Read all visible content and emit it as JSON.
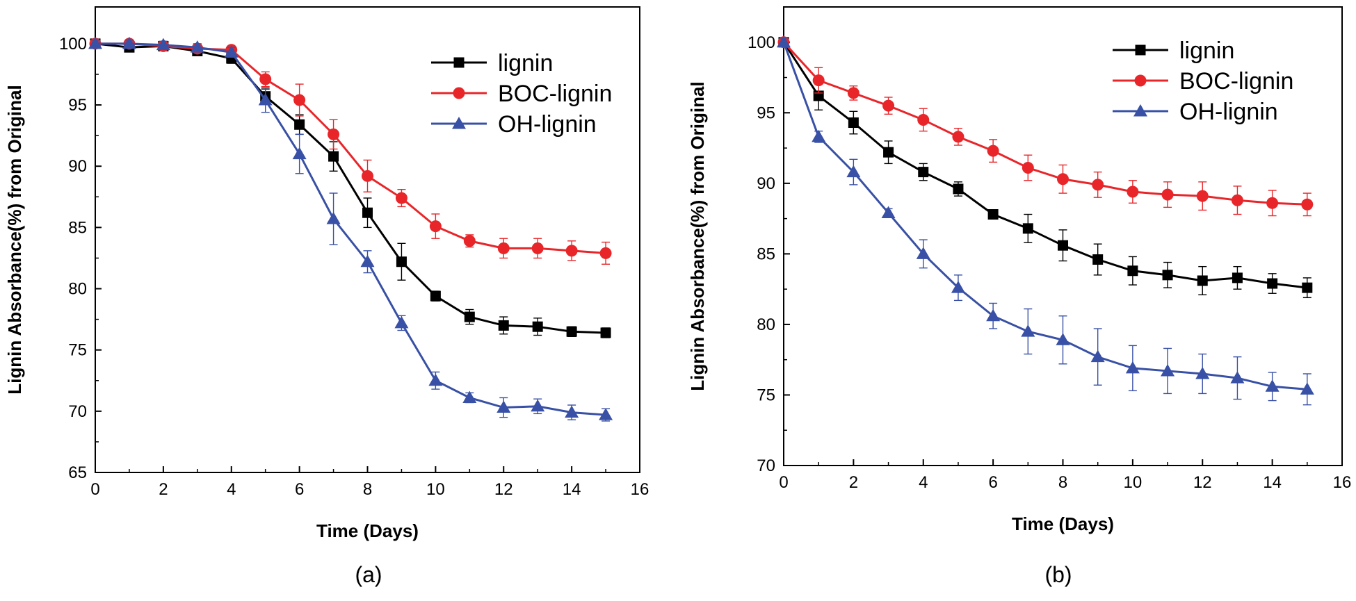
{
  "chart_data": [
    {
      "type": "line",
      "panel_label": "(a)",
      "xlabel": "Time (Days)",
      "ylabel": "Lignin Absorbance(%) from Original",
      "xlim": [
        0,
        16
      ],
      "ylim": [
        65,
        103
      ],
      "xticks": [
        0,
        2,
        4,
        6,
        8,
        10,
        12,
        14,
        16
      ],
      "yticks": [
        65,
        70,
        75,
        80,
        85,
        90,
        95,
        100
      ],
      "legend_position": "top-right",
      "x": [
        0,
        1,
        2,
        3,
        4,
        5,
        6,
        7,
        8,
        9,
        10,
        11,
        12,
        13,
        14,
        15
      ],
      "series": [
        {
          "name": "lignin",
          "color": "#000000",
          "marker": "square",
          "values": [
            100,
            99.7,
            99.8,
            99.4,
            98.8,
            95.7,
            93.4,
            90.8,
            86.2,
            82.2,
            79.4,
            77.7,
            77.0,
            76.9,
            76.5,
            76.4
          ],
          "errors": [
            0.3,
            0.3,
            0.3,
            0.3,
            0.4,
            0.6,
            0.8,
            1.2,
            1.2,
            1.5,
            0.4,
            0.6,
            0.7,
            0.7,
            0.4,
            0.4
          ]
        },
        {
          "name": "BOC-lignin",
          "color": "#e8262a",
          "marker": "circle",
          "values": [
            100,
            100,
            99.8,
            99.6,
            99.5,
            97.1,
            95.4,
            92.6,
            89.2,
            87.4,
            85.1,
            83.9,
            83.3,
            83.3,
            83.1,
            82.9
          ],
          "errors": [
            0.3,
            0.3,
            0.3,
            0.3,
            0.3,
            0.6,
            1.3,
            1.2,
            1.3,
            0.7,
            1.0,
            0.5,
            0.8,
            0.8,
            0.8,
            0.9
          ]
        },
        {
          "name": "OH-lignin",
          "color": "#3850a5",
          "marker": "triangle",
          "values": [
            100,
            100,
            99.9,
            99.7,
            99.3,
            95.4,
            91.0,
            85.7,
            82.2,
            77.2,
            72.5,
            71.1,
            70.3,
            70.4,
            69.9,
            69.7
          ],
          "errors": [
            0.3,
            0.3,
            0.3,
            0.3,
            0.4,
            1.0,
            1.6,
            2.1,
            0.9,
            0.6,
            0.7,
            0.4,
            0.8,
            0.6,
            0.6,
            0.5
          ]
        }
      ]
    },
    {
      "type": "line",
      "panel_label": "(b)",
      "xlabel": "Time (Days)",
      "ylabel": "Lignin Absorbance(%) from Original",
      "xlim": [
        0,
        16
      ],
      "ylim": [
        70,
        102.5
      ],
      "xticks": [
        0,
        2,
        4,
        6,
        8,
        10,
        12,
        14,
        16
      ],
      "yticks": [
        70,
        75,
        80,
        85,
        90,
        95,
        100
      ],
      "legend_position": "top-right",
      "x": [
        0,
        1,
        2,
        3,
        4,
        5,
        6,
        7,
        8,
        9,
        10,
        11,
        12,
        13,
        14,
        15
      ],
      "series": [
        {
          "name": "lignin",
          "color": "#000000",
          "marker": "square",
          "values": [
            100,
            96.2,
            94.3,
            92.2,
            90.8,
            89.6,
            87.8,
            86.8,
            85.6,
            84.6,
            83.8,
            83.5,
            83.1,
            83.3,
            82.9,
            82.6
          ],
          "errors": [
            0.3,
            1.0,
            0.8,
            0.8,
            0.6,
            0.5,
            0.3,
            1.0,
            1.1,
            1.1,
            1.0,
            0.9,
            1.0,
            0.8,
            0.7,
            0.7
          ]
        },
        {
          "name": "BOC-lignin",
          "color": "#e8262a",
          "marker": "circle",
          "values": [
            100,
            97.3,
            96.4,
            95.5,
            94.5,
            93.3,
            92.3,
            91.1,
            90.3,
            89.9,
            89.4,
            89.2,
            89.1,
            88.8,
            88.6,
            88.5
          ],
          "errors": [
            0.3,
            0.9,
            0.5,
            0.6,
            0.8,
            0.6,
            0.8,
            0.9,
            1.0,
            0.9,
            0.8,
            0.9,
            1.0,
            1.0,
            0.9,
            0.8
          ]
        },
        {
          "name": "OH-lignin",
          "color": "#3850a5",
          "marker": "triangle",
          "values": [
            100,
            93.3,
            90.8,
            87.9,
            85.0,
            82.6,
            80.6,
            79.5,
            78.9,
            77.7,
            76.9,
            76.7,
            76.5,
            76.2,
            75.6,
            75.4
          ],
          "errors": [
            0.3,
            0.4,
            0.9,
            0.3,
            1.0,
            0.9,
            0.9,
            1.6,
            1.7,
            2.0,
            1.6,
            1.6,
            1.4,
            1.5,
            1.0,
            1.1
          ]
        }
      ]
    }
  ]
}
